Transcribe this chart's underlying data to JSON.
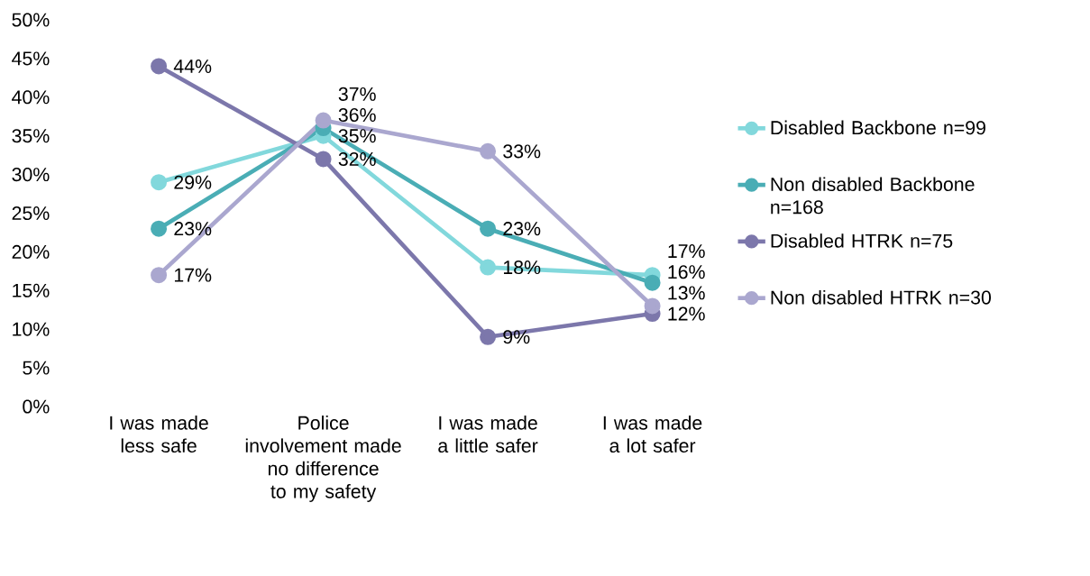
{
  "chart_data": {
    "type": "line",
    "categories": [
      "I was made less safe",
      "Police involvement made no difference to my safety",
      "I was made a little safer",
      "I was made a lot safer"
    ],
    "series": [
      {
        "name": "Disabled Backbone n=99",
        "color": "#82d8dc",
        "values": [
          29,
          35,
          18,
          17
        ],
        "value_labels": [
          "29%",
          "35%",
          "18%",
          "17%"
        ]
      },
      {
        "name": "Non disabled Backbone n=168",
        "color": "#4aadb5",
        "values": [
          23,
          36,
          23,
          16
        ],
        "value_labels": [
          "23%",
          "36%",
          "23%",
          "16%"
        ]
      },
      {
        "name": "Disabled HTRK n=75",
        "color": "#7c77ab",
        "values": [
          44,
          32,
          9,
          12
        ],
        "value_labels": [
          "44%",
          "32%",
          "9%",
          "12%"
        ]
      },
      {
        "name": "Non disabled HTRK n=30",
        "color": "#aaa7cf",
        "values": [
          17,
          37,
          33,
          13
        ],
        "value_labels": [
          "17%",
          "37%",
          "33%",
          "13%"
        ]
      }
    ],
    "ylim": [
      0,
      50
    ],
    "yticks": [
      {
        "value": 0,
        "label": "0%"
      },
      {
        "value": 5,
        "label": "5%"
      },
      {
        "value": 10,
        "label": "10%"
      },
      {
        "value": 15,
        "label": "15%"
      },
      {
        "value": 20,
        "label": "20%"
      },
      {
        "value": 25,
        "label": "25%"
      },
      {
        "value": 30,
        "label": "30%"
      },
      {
        "value": 35,
        "label": "35%"
      },
      {
        "value": 40,
        "label": "40%"
      },
      {
        "value": 45,
        "label": "45%"
      },
      {
        "value": 50,
        "label": "50%"
      }
    ],
    "marker": "circle",
    "line_style": "solid",
    "legend": "right",
    "grid": false
  }
}
